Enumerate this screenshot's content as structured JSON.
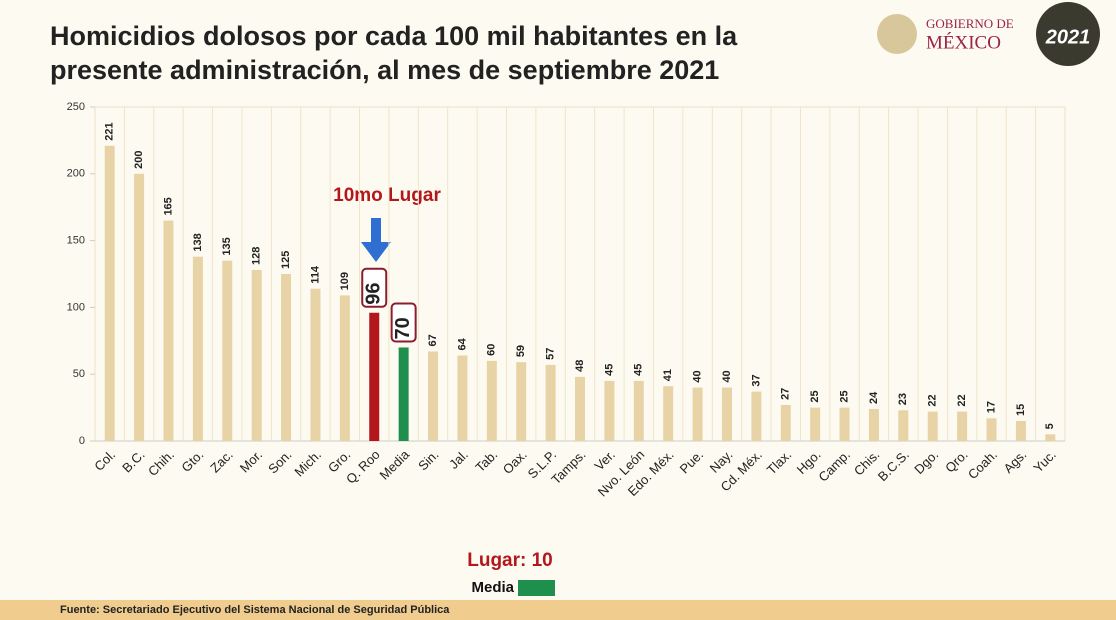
{
  "logo": {
    "line1": "GOBIERNO DE",
    "line2": "MÉXICO",
    "year": "2021"
  },
  "chart_data": {
    "type": "bar",
    "title": [
      "Homicidios dolosos por cada 100 mil habitantes en la",
      "presente administración, al mes de septiembre 2021"
    ],
    "categories": [
      "Col.",
      "B.C.",
      "Chih.",
      "Gto.",
      "Zac.",
      "Mor.",
      "Son.",
      "Mich.",
      "Gro.",
      "Q. Roo",
      "Media",
      "Sin.",
      "Jal.",
      "Tab.",
      "Oax.",
      "S.L.P.",
      "Tamps.",
      "Ver.",
      "Nvo. León",
      "Edo. Méx.",
      "Pue.",
      "Nay.",
      "Cd. Méx.",
      "Tlax.",
      "Hgo.",
      "Camp.",
      "Chis.",
      "B.C.S.",
      "Dgo.",
      "Qro.",
      "Coah.",
      "Ags.",
      "Yuc."
    ],
    "values": [
      221,
      200,
      165,
      138,
      135,
      128,
      125,
      114,
      109,
      96,
      70,
      67,
      64,
      60,
      59,
      57,
      48,
      45,
      45,
      41,
      40,
      40,
      37,
      27,
      25,
      25,
      24,
      23,
      22,
      22,
      17,
      15,
      5
    ],
    "color": "#e8d3a6",
    "colors": [
      "#e8d3a6",
      "#e8d3a6",
      "#e8d3a6",
      "#e8d3a6",
      "#e8d3a6",
      "#e8d3a6",
      "#e8d3a6",
      "#e8d3a6",
      "#e8d3a6",
      "#b3161b",
      "#1f8f4e",
      "#e8d3a6",
      "#e8d3a6",
      "#e8d3a6",
      "#e8d3a6",
      "#e8d3a6",
      "#e8d3a6",
      "#e8d3a6",
      "#e8d3a6",
      "#e8d3a6",
      "#e8d3a6",
      "#e8d3a6",
      "#e8d3a6",
      "#e8d3a6",
      "#e8d3a6",
      "#e8d3a6",
      "#e8d3a6",
      "#e8d3a6",
      "#e8d3a6",
      "#e8d3a6",
      "#e8d3a6",
      "#e8d3a6",
      "#e8d3a6"
    ],
    "ylim": [
      0,
      250
    ],
    "yticks": [
      0,
      50,
      100,
      150,
      200,
      250
    ],
    "annotation": "10mo Lugar",
    "legend": {
      "title": "Lugar: 10",
      "label": "Media",
      "color": "#1f8f4e"
    },
    "source": "Fuente: Secretariado Ejecutivo del Sistema Nacional de Seguridad Pública"
  }
}
